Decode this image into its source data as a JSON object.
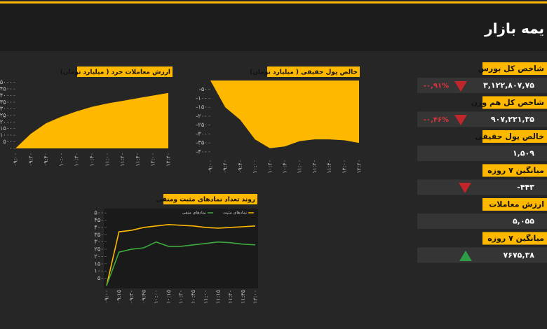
{
  "header": {
    "title": "یمه بازار"
  },
  "panel": {
    "items": [
      {
        "label": "شاخص کل بورس",
        "value": "۳,۱۲۲,۸۰۷,۷۵",
        "change": "-۰,۹۱%"
      },
      {
        "label": "شاخص کل هم وزن",
        "value": "۹۰۷,۲۲۱,۳۵",
        "change": "-۰,۴۶%"
      },
      {
        "label": "خالص پول حقیقی",
        "value": "۱,۵۰۹"
      },
      {
        "label": "میانگین ۷ روزه",
        "value": "-۴۴۳"
      },
      {
        "label": "ارزش معاملات",
        "value": "۵,۰۵۵"
      },
      {
        "label": "میانگین ۷ روزه",
        "value": "۷۶۷۵,۳۸"
      }
    ]
  },
  "chart_data": [
    {
      "type": "area",
      "title": "ارزش معاملات خرد ( میلیارد تومان)",
      "color": "#ffb800",
      "categories": [
        "۰۹:۰۰",
        "۰۹:۲۰",
        "۰۹:۴۰",
        "۱۰:۰۰",
        "۱۰:۲۰",
        "۱۰:۴۰",
        "۱۱:۰۰",
        "۱۱:۲۰",
        "۱۱:۴۰",
        "۱۲:۰۰",
        "۱۲:۲۰"
      ],
      "values": [
        0,
        1100,
        1900,
        2400,
        2800,
        3150,
        3400,
        3600,
        3800,
        4000,
        4200
      ],
      "ylim": [
        0,
        5300
      ],
      "yticks": [
        {
          "value": 0,
          "label": "۰"
        },
        {
          "value": 500,
          "label": "۵۰۰"
        },
        {
          "value": 1000,
          "label": "۱۰۰۰"
        },
        {
          "value": 1500,
          "label": "۱۵۰۰"
        },
        {
          "value": 2000,
          "label": "۲۰۰۰"
        },
        {
          "value": 2500,
          "label": "۲۵۰۰"
        },
        {
          "value": 3000,
          "label": "۳۰۰۰"
        },
        {
          "value": 3500,
          "label": "۳۵۰۰"
        },
        {
          "value": 4000,
          "label": "۴۰۰۰"
        },
        {
          "value": 4500,
          "label": "۴۵۰۰"
        },
        {
          "value": 5000,
          "label": "۵۰۰۰"
        }
      ]
    },
    {
      "type": "area",
      "title": "خالص پول حقیقی ( میلیارد تومان)",
      "color": "#ffb800",
      "categories": [
        "۰۹:۰۰",
        "۰۹:۲۰",
        "۰۹:۴۰",
        "۱۰:۰۰",
        "۱۰:۲۰",
        "۱۰:۴۰",
        "۱۱:۰۰",
        "۱۱:۲۰",
        "۱۱:۴۰",
        "۱۲:۰۰",
        "۱۲:۲۰"
      ],
      "values": [
        0,
        -150,
        -220,
        -330,
        -380,
        -370,
        -340,
        -330,
        -330,
        -335,
        -350
      ],
      "ylim": [
        -420,
        0
      ],
      "yticks": [
        {
          "value": -400,
          "label": "-۴۰۰"
        },
        {
          "value": -350,
          "label": "-۳۵۰"
        },
        {
          "value": -300,
          "label": "-۳۰۰"
        },
        {
          "value": -250,
          "label": "-۲۵۰"
        },
        {
          "value": -200,
          "label": "-۲۰۰"
        },
        {
          "value": -150,
          "label": "-۱۵۰"
        },
        {
          "value": -100,
          "label": "-۱۰۰"
        },
        {
          "value": -50,
          "label": "-۵۰"
        }
      ]
    },
    {
      "type": "line",
      "title": "روند تعداد نمادهای مثبت ومنفی",
      "categories": [
        "۰۹:۰۰",
        "۰۹:۱۵",
        "۰۹:۳۰",
        "۰۹:۴۵",
        "۱۰:۰۰",
        "۱۰:۱۵",
        "۱۰:۳۰",
        "۱۰:۴۵",
        "۱۱:۰۰",
        "۱۱:۱۵",
        "۱۱:۳۰",
        "۱۱:۴۵",
        "۱۲:۰۰"
      ],
      "series": [
        {
          "name": "نمادهای مثبت",
          "color": "#ffb800",
          "values": [
            0,
            370,
            380,
            400,
            410,
            420,
            415,
            410,
            400,
            395,
            400,
            405,
            410
          ]
        },
        {
          "name": "نمادهای منفی",
          "color": "#3daa3d",
          "values": [
            0,
            230,
            250,
            260,
            300,
            270,
            270,
            280,
            290,
            300,
            295,
            285,
            280
          ]
        }
      ],
      "ylim": [
        0,
        520
      ],
      "yticks": [
        {
          "value": 50,
          "label": "۵۰"
        },
        {
          "value": 100,
          "label": "۱۰۰"
        },
        {
          "value": 150,
          "label": "۱۵۰"
        },
        {
          "value": 200,
          "label": "۲۰۰"
        },
        {
          "value": 250,
          "label": "۲۵۰"
        },
        {
          "value": 300,
          "label": "۳۰۰"
        },
        {
          "value": 350,
          "label": "۳۵۰"
        },
        {
          "value": 400,
          "label": "۴۰۰"
        },
        {
          "value": 450,
          "label": "۴۵۰"
        },
        {
          "value": 500,
          "label": "۵۰۰"
        }
      ]
    }
  ]
}
